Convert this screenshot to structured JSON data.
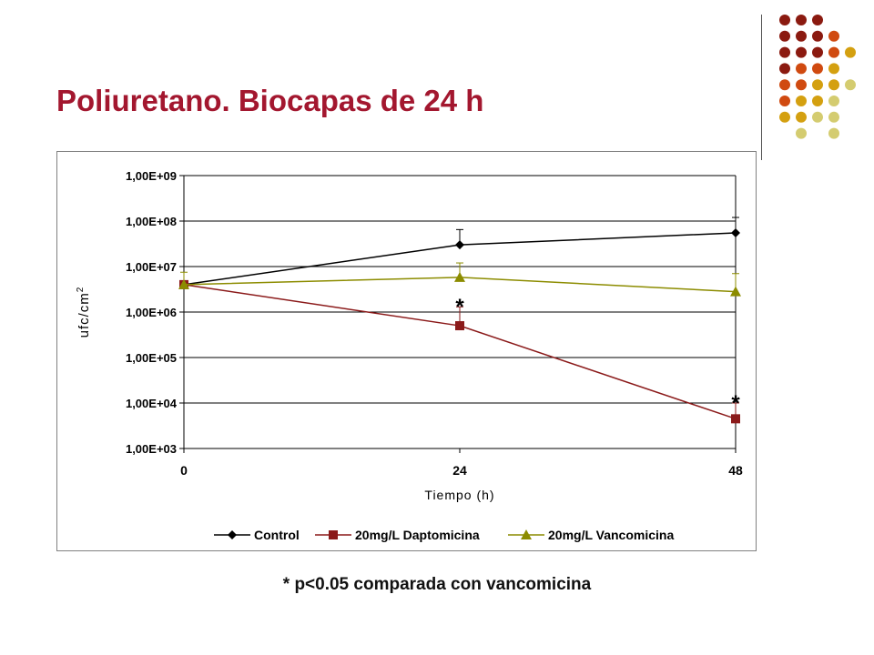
{
  "slide": {
    "title": "Poliuretano. Biocapas de 24 h",
    "footnote": "* p<0.05 comparada con vancomicina"
  },
  "decor": {
    "palette": [
      "#8b1a10",
      "#d04a10",
      "#d4a010",
      "#d4cc70"
    ]
  },
  "chart_data": {
    "type": "line",
    "x": [
      0,
      24,
      48
    ],
    "x_ticks": [
      "0",
      "24",
      "48"
    ],
    "xlabel": "Tiempo (h)",
    "ylabel": "ufc/cm",
    "ylabel_sup": "2",
    "y_scale": "log",
    "ylim": [
      1000,
      1000000000
    ],
    "y_ticks": [
      {
        "value": 1000,
        "label": "1,00E+03"
      },
      {
        "value": 10000,
        "label": "1,00E+04"
      },
      {
        "value": 100000,
        "label": "1,00E+05"
      },
      {
        "value": 1000000,
        "label": "1,00E+06"
      },
      {
        "value": 10000000,
        "label": "1,00E+07"
      },
      {
        "value": 100000000,
        "label": "1,00E+08"
      },
      {
        "value": 1000000000,
        "label": "1,00E+09"
      }
    ],
    "grid": "horizontal",
    "legend_position": "bottom",
    "series": [
      {
        "name": "Control",
        "color": "#000000",
        "marker": "diamond",
        "values": [
          4000000,
          30000000,
          55000000
        ],
        "error_upper": [
          null,
          65000000,
          120000000
        ]
      },
      {
        "name": "20mg/L Daptomicina",
        "color": "#8b1a1a",
        "marker": "square",
        "values": [
          4000000,
          500000,
          4500
        ],
        "error_upper": [
          null,
          1300000,
          10000
        ]
      },
      {
        "name": "20mg/L Vancomicina",
        "color": "#8c8c00",
        "marker": "triangle",
        "values": [
          4000000,
          5800000,
          2800000
        ],
        "error_upper": [
          7500000,
          12000000,
          7000000
        ]
      }
    ],
    "annotations": [
      {
        "text": "*",
        "x": 24,
        "y": 1600000
      },
      {
        "text": "*",
        "x": 48,
        "y": 12000
      }
    ]
  }
}
